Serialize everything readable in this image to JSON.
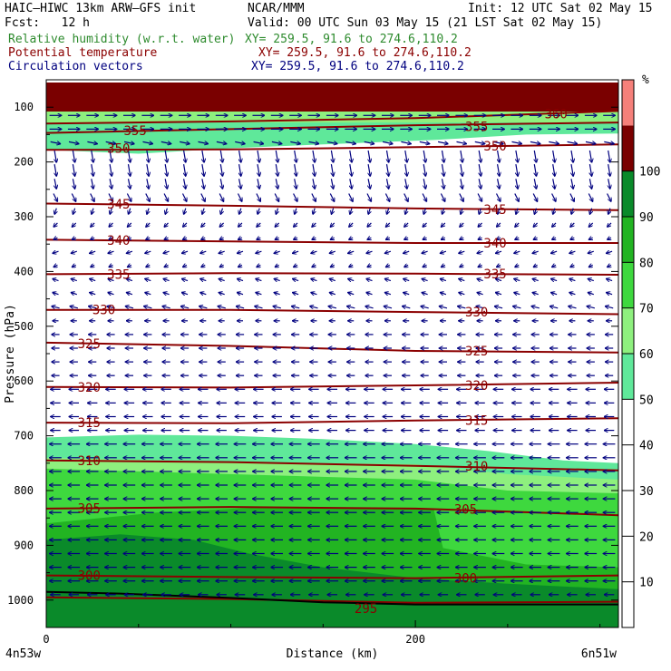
{
  "header": {
    "model": "HAIC–HIWC 13km ARW–GFS init",
    "org": "NCAR/MMM",
    "init": "Init: 12 UTC Sat 02 May 15",
    "fcst": "Fcst:   12 h",
    "valid": "Valid: 00 UTC Sun 03 May 15 (21 LST Sat 02 May 15)",
    "fields": [
      {
        "label": "Relative humidity (w.r.t. water)",
        "xy": "XY= 259.5, 91.6 to 274.6,110.2",
        "color": "#2e8b2e"
      },
      {
        "label": "Potential temperature",
        "xy": "XY= 259.5, 91.6 to 274.6,110.2",
        "color": "#8b0000"
      },
      {
        "label": "Circulation vectors",
        "xy": "XY= 259.5, 91.6 to 274.6,110.2",
        "color": "#00007f"
      }
    ]
  },
  "chart_data": {
    "type": "heatmap",
    "title": "",
    "xlabel": "Distance (km)",
    "ylabel": "Pressure (hPa)",
    "x_ticks": [
      0,
      200
    ],
    "y_ticks": [
      100,
      200,
      300,
      400,
      500,
      600,
      700,
      800,
      900,
      1000
    ],
    "xlim": [
      0,
      310
    ],
    "ylim": [
      50,
      1050
    ],
    "endpoints": {
      "left": "4n53w",
      "right": "6n51w"
    },
    "colorbar": {
      "unit": "%",
      "ticks": [
        10,
        20,
        30,
        40,
        50,
        60,
        70,
        80,
        90,
        100
      ],
      "bands": [
        {
          "from": 0,
          "to": 50,
          "color": "#ffffff"
        },
        {
          "from": 50,
          "to": 60,
          "color": "#5fe89a"
        },
        {
          "from": 60,
          "to": 70,
          "color": "#8ef07e"
        },
        {
          "from": 70,
          "to": 80,
          "color": "#3ed83e"
        },
        {
          "from": 80,
          "to": 90,
          "color": "#22b422"
        },
        {
          "from": 90,
          "to": 100,
          "color": "#0a8a2a"
        },
        {
          "from": 100,
          "to": 110,
          "color": "#7a0000"
        },
        {
          "from": 110,
          "to": 120,
          "color": "#f5807a"
        }
      ]
    },
    "rh_regions": [
      {
        "rh": 100,
        "top": [
          [
            0,
            55
          ],
          [
            310,
            55
          ]
        ],
        "bottom": [
          [
            0,
            108
          ],
          [
            310,
            108
          ]
        ]
      },
      {
        "rh": 50,
        "top": [
          [
            0,
            108
          ],
          [
            310,
            108
          ]
        ],
        "bottom": [
          [
            0,
            178
          ],
          [
            50,
            185
          ],
          [
            100,
            175
          ],
          [
            150,
            168
          ],
          [
            210,
            160
          ],
          [
            260,
            150
          ],
          [
            310,
            148
          ]
        ]
      },
      {
        "rh": 60,
        "top": [
          [
            0,
            108
          ],
          [
            310,
            108
          ]
        ],
        "bottom": [
          [
            0,
            128
          ],
          [
            310,
            128
          ]
        ]
      },
      {
        "rh": 50,
        "top": [
          [
            0,
            703
          ],
          [
            50,
            698
          ],
          [
            100,
            700
          ],
          [
            150,
            706
          ],
          [
            200,
            715
          ],
          [
            240,
            728
          ],
          [
            280,
            745
          ],
          [
            310,
            750
          ]
        ],
        "bottom": [
          [
            0,
            1050
          ],
          [
            310,
            1050
          ]
        ]
      },
      {
        "rh": 60,
        "top": [
          [
            0,
            740
          ],
          [
            100,
            748
          ],
          [
            200,
            752
          ],
          [
            250,
            770
          ],
          [
            310,
            780
          ]
        ],
        "bottom": [
          [
            0,
            1050
          ],
          [
            310,
            1050
          ]
        ]
      },
      {
        "rh": 70,
        "top": [
          [
            0,
            760
          ],
          [
            100,
            770
          ],
          [
            200,
            780
          ],
          [
            250,
            800
          ],
          [
            310,
            805
          ]
        ],
        "bottom": [
          [
            0,
            1050
          ],
          [
            310,
            1050
          ]
        ]
      },
      {
        "rh": 80,
        "top": [
          [
            0,
            860
          ],
          [
            60,
            840
          ],
          [
            120,
            830
          ],
          [
            180,
            832
          ],
          [
            210,
            835
          ],
          [
            215,
            905
          ],
          [
            260,
            935
          ],
          [
            310,
            940
          ]
        ],
        "bottom": [
          [
            0,
            1050
          ],
          [
            310,
            1050
          ]
        ]
      },
      {
        "rh": 90,
        "top": [
          [
            0,
            890
          ],
          [
            40,
            880
          ],
          [
            80,
            890
          ],
          [
            110,
            915
          ],
          [
            150,
            940
          ],
          [
            200,
            960
          ],
          [
            250,
            970
          ],
          [
            310,
            980
          ]
        ],
        "bottom": [
          [
            0,
            1050
          ],
          [
            310,
            1050
          ]
        ]
      }
    ],
    "theta_contours": [
      {
        "value": 360,
        "points": [
          [
            0,
            130
          ],
          [
            100,
            126
          ],
          [
            200,
            120
          ],
          [
            260,
            113
          ],
          [
            310,
            107
          ]
        ]
      },
      {
        "value": 355,
        "points": [
          [
            0,
            147
          ],
          [
            100,
            140
          ],
          [
            200,
            133
          ],
          [
            310,
            128
          ]
        ]
      },
      {
        "value": 350,
        "points": [
          [
            0,
            178
          ],
          [
            100,
            177
          ],
          [
            200,
            173
          ],
          [
            310,
            168
          ]
        ]
      },
      {
        "value": 345,
        "points": [
          [
            0,
            276
          ],
          [
            100,
            280
          ],
          [
            200,
            285
          ],
          [
            310,
            288
          ]
        ]
      },
      {
        "value": 340,
        "points": [
          [
            0,
            342
          ],
          [
            100,
            345
          ],
          [
            200,
            348
          ],
          [
            310,
            348
          ]
        ]
      },
      {
        "value": 335,
        "points": [
          [
            0,
            405
          ],
          [
            100,
            403
          ],
          [
            200,
            404
          ],
          [
            310,
            406
          ]
        ]
      },
      {
        "value": 330,
        "points": [
          [
            0,
            470
          ],
          [
            100,
            470
          ],
          [
            200,
            474
          ],
          [
            310,
            478
          ]
        ]
      },
      {
        "value": 325,
        "points": [
          [
            0,
            530
          ],
          [
            100,
            536
          ],
          [
            200,
            545
          ],
          [
            310,
            548
          ]
        ]
      },
      {
        "value": 320,
        "points": [
          [
            0,
            611
          ],
          [
            100,
            612
          ],
          [
            200,
            608
          ],
          [
            310,
            603
          ]
        ]
      },
      {
        "value": 315,
        "points": [
          [
            0,
            676
          ],
          [
            100,
            677
          ],
          [
            200,
            672
          ],
          [
            310,
            668
          ]
        ]
      },
      {
        "value": 310,
        "points": [
          [
            0,
            745
          ],
          [
            100,
            748
          ],
          [
            200,
            755
          ],
          [
            310,
            763
          ]
        ]
      },
      {
        "value": 305,
        "points": [
          [
            0,
            833
          ],
          [
            100,
            830
          ],
          [
            200,
            833
          ],
          [
            310,
            845
          ]
        ]
      },
      {
        "value": 300,
        "points": [
          [
            0,
            955
          ],
          [
            100,
            958
          ],
          [
            200,
            960
          ],
          [
            310,
            955
          ]
        ]
      },
      {
        "value": 295,
        "points": [
          [
            0,
            995
          ],
          [
            100,
            998
          ],
          [
            200,
            1005
          ],
          [
            310,
            1003
          ]
        ]
      }
    ],
    "theta_labels": [
      {
        "value": "360",
        "x": 270,
        "p": 112
      },
      {
        "value": "355",
        "x": 42,
        "p": 143
      },
      {
        "value": "355",
        "x": 227,
        "p": 135
      },
      {
        "value": "350",
        "x": 33,
        "p": 175
      },
      {
        "value": "350",
        "x": 237,
        "p": 171
      },
      {
        "value": "345",
        "x": 33,
        "p": 277
      },
      {
        "value": "345",
        "x": 237,
        "p": 287
      },
      {
        "value": "340",
        "x": 33,
        "p": 343
      },
      {
        "value": "340",
        "x": 237,
        "p": 348
      },
      {
        "value": "335",
        "x": 33,
        "p": 405
      },
      {
        "value": "335",
        "x": 237,
        "p": 404
      },
      {
        "value": "330",
        "x": 25,
        "p": 470
      },
      {
        "value": "330",
        "x": 227,
        "p": 474
      },
      {
        "value": "325",
        "x": 17,
        "p": 532
      },
      {
        "value": "325",
        "x": 227,
        "p": 545
      },
      {
        "value": "320",
        "x": 17,
        "p": 611
      },
      {
        "value": "320",
        "x": 227,
        "p": 608
      },
      {
        "value": "315",
        "x": 17,
        "p": 676
      },
      {
        "value": "315",
        "x": 227,
        "p": 672
      },
      {
        "value": "310",
        "x": 17,
        "p": 745
      },
      {
        "value": "310",
        "x": 227,
        "p": 755
      },
      {
        "value": "305",
        "x": 17,
        "p": 832
      },
      {
        "value": "305",
        "x": 221,
        "p": 834
      },
      {
        "value": "300",
        "x": 17,
        "p": 955
      },
      {
        "value": "300",
        "x": 221,
        "p": 960
      },
      {
        "value": "295",
        "x": 167,
        "p": 1015
      }
    ],
    "surface": [
      [
        0,
        985
      ],
      [
        40,
        988
      ],
      [
        100,
        996
      ],
      [
        150,
        1004
      ],
      [
        200,
        1008
      ],
      [
        250,
        1008
      ],
      [
        310,
        1008
      ]
    ],
    "vector_rows": [
      {
        "p": 115,
        "u": 6,
        "w": 0
      },
      {
        "p": 140,
        "u": 6,
        "w": 0
      },
      {
        "p": 165,
        "u": 5,
        "w": -1
      },
      {
        "p": 190,
        "u": 1,
        "w": -6
      },
      {
        "p": 215,
        "u": 1,
        "w": -6
      },
      {
        "p": 240,
        "u": 1,
        "w": -5
      },
      {
        "p": 265,
        "u": 2,
        "w": -4
      },
      {
        "p": 290,
        "u": -1,
        "w": -3
      },
      {
        "p": 315,
        "u": -2,
        "w": -2
      },
      {
        "p": 340,
        "u": -2,
        "w": -1
      },
      {
        "p": 365,
        "u": -3,
        "w": -1
      },
      {
        "p": 390,
        "u": -2,
        "w": -1
      },
      {
        "p": 415,
        "u": -3,
        "w": 1
      },
      {
        "p": 440,
        "u": -3,
        "w": 1
      },
      {
        "p": 465,
        "u": -4,
        "w": 1
      },
      {
        "p": 490,
        "u": -3,
        "w": 0
      },
      {
        "p": 515,
        "u": -4,
        "w": 0
      },
      {
        "p": 540,
        "u": -4,
        "w": 0
      },
      {
        "p": 565,
        "u": -4,
        "w": 0
      },
      {
        "p": 590,
        "u": -4,
        "w": 0
      },
      {
        "p": 615,
        "u": -5,
        "w": 0
      },
      {
        "p": 640,
        "u": -5,
        "w": 0
      },
      {
        "p": 665,
        "u": -5,
        "w": 0
      },
      {
        "p": 690,
        "u": -5,
        "w": 0
      },
      {
        "p": 715,
        "u": -6,
        "w": 0
      },
      {
        "p": 740,
        "u": -6,
        "w": 0
      },
      {
        "p": 765,
        "u": -6,
        "w": 0
      },
      {
        "p": 790,
        "u": -6,
        "w": 0
      },
      {
        "p": 815,
        "u": -6,
        "w": 0
      },
      {
        "p": 840,
        "u": -6,
        "w": 0
      },
      {
        "p": 865,
        "u": -6,
        "w": 0
      },
      {
        "p": 890,
        "u": -6,
        "w": 0
      },
      {
        "p": 915,
        "u": -6,
        "w": 0
      },
      {
        "p": 940,
        "u": -6,
        "w": 0
      },
      {
        "p": 965,
        "u": -6,
        "w": 0
      },
      {
        "p": 990,
        "u": -5,
        "w": 0
      }
    ],
    "vector_columns": 31
  },
  "colors": {
    "theta": "#8b0000",
    "vector": "#00007f",
    "surface": "#000000"
  }
}
